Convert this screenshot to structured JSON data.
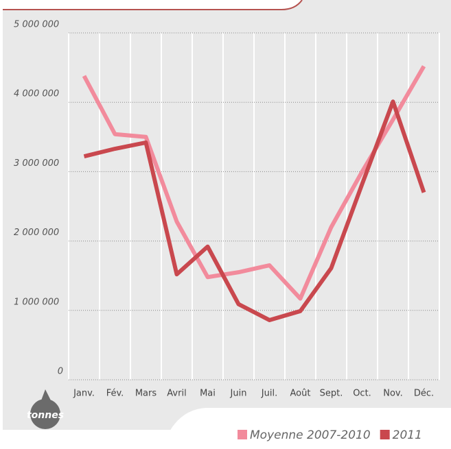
{
  "chart_data": {
    "type": "line",
    "unit_label": "tonnes",
    "categories": [
      "Janv.",
      "Fév.",
      "Mars",
      "Avril",
      "Mai",
      "Juin",
      "Juil.",
      "Août",
      "Sept.",
      "Oct.",
      "Nov.",
      "Déc."
    ],
    "series": [
      {
        "name": "Moyenne 2007-2010",
        "color": "#f28b9c",
        "values": [
          4380000,
          3540000,
          3500000,
          2280000,
          1480000,
          1550000,
          1650000,
          1170000,
          2200000,
          3000000,
          3750000,
          4520000
        ]
      },
      {
        "name": "2011",
        "color": "#c9484e",
        "values": [
          3220000,
          3330000,
          3420000,
          1520000,
          1920000,
          1090000,
          860000,
          990000,
          1610000,
          2820000,
          4010000,
          2700000
        ]
      }
    ],
    "ylim": [
      0,
      5000000
    ],
    "yticks": [
      0,
      {
        "value": 1000000,
        "label": "1 000 000"
      },
      {
        "value": 2000000,
        "label": "2 000 000"
      },
      {
        "value": 3000000,
        "label": "3 000 000"
      },
      {
        "value": 4000000,
        "label": "4 000 000"
      },
      {
        "value": 5000000,
        "label": "5 000 000"
      }
    ],
    "grid": true
  }
}
